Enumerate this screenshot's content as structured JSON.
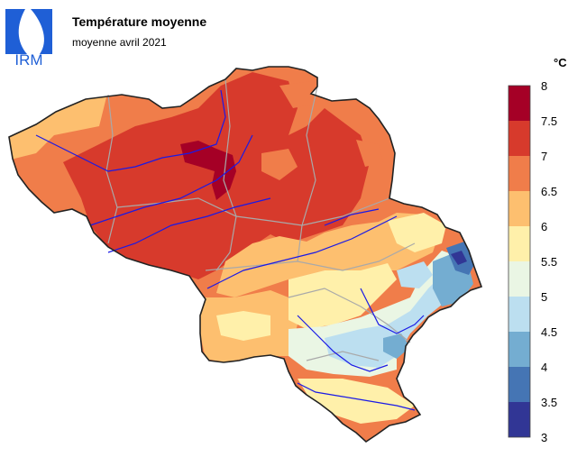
{
  "header": {
    "logo_text": "IRM",
    "title": "Température moyenne",
    "subtitle": "moyenne avril 2021"
  },
  "legend": {
    "unit": "°C",
    "bands": [
      {
        "from": 3,
        "to": 3.5,
        "color": "#313695"
      },
      {
        "from": 3.5,
        "to": 4,
        "color": "#4575b4"
      },
      {
        "from": 4,
        "to": 4.5,
        "color": "#74add1"
      },
      {
        "from": 4.5,
        "to": 5,
        "color": "#bcdff0"
      },
      {
        "from": 5,
        "to": 5.5,
        "color": "#eaf6e4"
      },
      {
        "from": 5.5,
        "to": 6,
        "color": "#fff0aa"
      },
      {
        "from": 6,
        "to": 6.5,
        "color": "#fdbf6f"
      },
      {
        "from": 6.5,
        "to": 7,
        "color": "#f07d4a"
      },
      {
        "from": 7,
        "to": 7.5,
        "color": "#d73a2c"
      },
      {
        "from": 7.5,
        "to": 8,
        "color": "#a50026"
      }
    ],
    "ticks": [
      "3",
      "3.5",
      "4",
      "4.5",
      "5",
      "5.5",
      "6",
      "6.5",
      "7",
      "7.5",
      "8"
    ]
  }
}
